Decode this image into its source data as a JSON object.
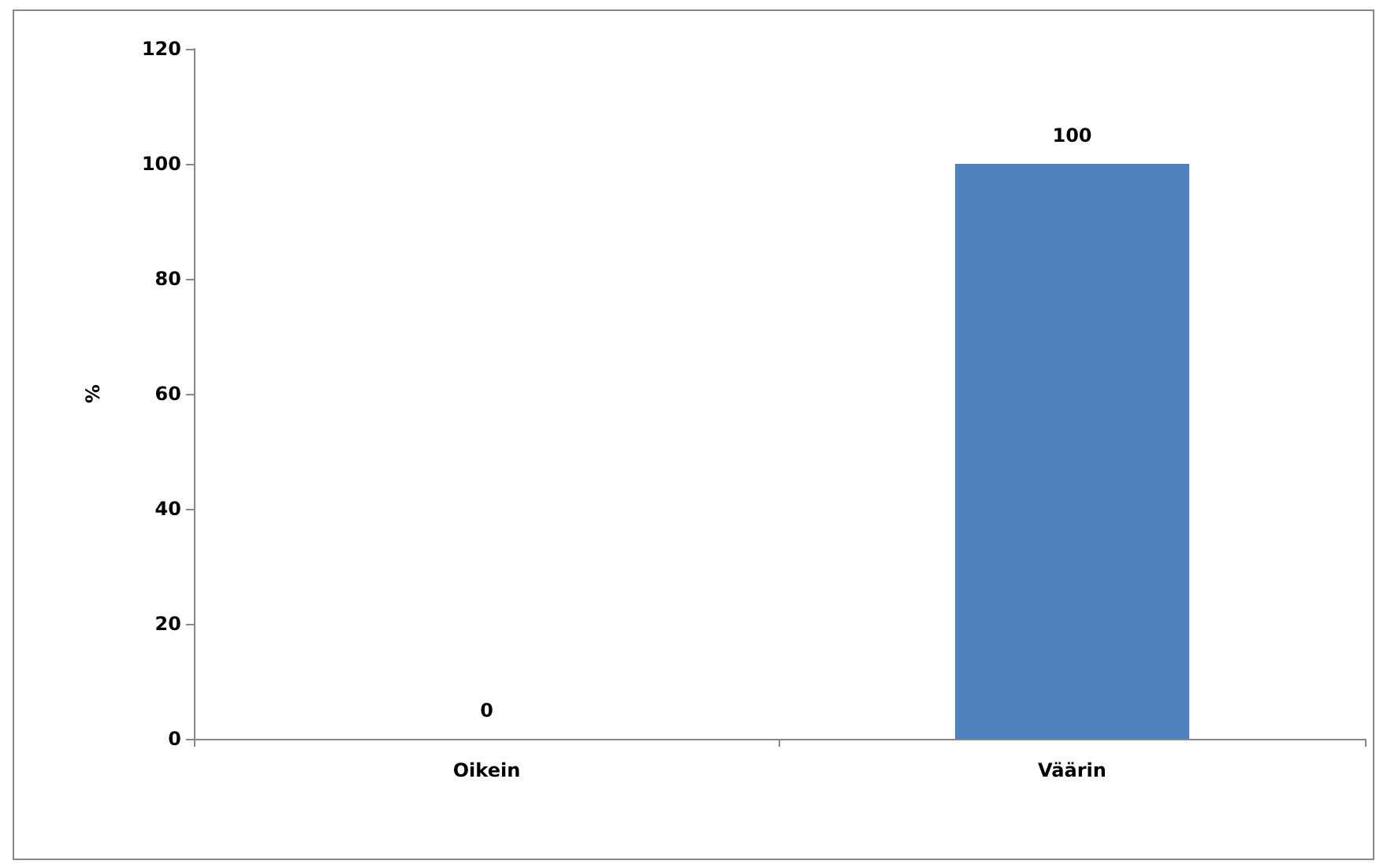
{
  "chart_data": {
    "type": "bar",
    "ylabel": "%",
    "categories": [
      "Oikein",
      "Väärin"
    ],
    "values": [
      0,
      100
    ],
    "color": "#4f81bd",
    "ylim": [
      0,
      120
    ],
    "yticks": [
      0,
      20,
      40,
      60,
      80,
      100,
      120
    ],
    "grid": false,
    "data_labels": true
  }
}
